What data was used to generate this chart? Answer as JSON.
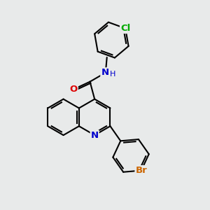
{
  "background_color": "#e8eaea",
  "bond_color": "#000000",
  "bond_width": 1.5,
  "atom_colors": {
    "N": "#0000cc",
    "O": "#dd0000",
    "Cl": "#00aa00",
    "Br": "#cc6600"
  },
  "figsize": [
    3.0,
    3.0
  ],
  "dpi": 100,
  "bl": 0.52
}
